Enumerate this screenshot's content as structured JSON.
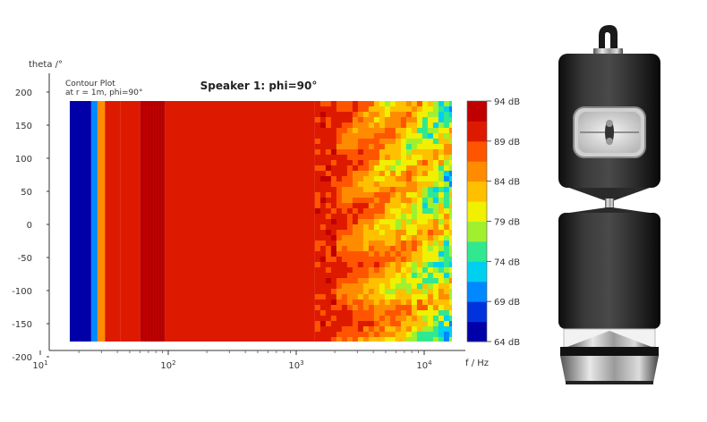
{
  "chart_data": {
    "type": "heatmap",
    "title": "Speaker 1: phi=90°",
    "subtitle_lines": [
      "Contour Plot",
      "at r = 1m, phi=90°"
    ],
    "ylabel": "theta /°",
    "xlabel": "f / Hz",
    "x_scale": "log",
    "xlim": [
      10,
      20000
    ],
    "ylim": [
      -180,
      180
    ],
    "y_ticks": [
      "200",
      "150",
      "100",
      "50",
      "0",
      "-50",
      "-100",
      "-150",
      "-200"
    ],
    "x_ticks": [
      {
        "base": "10",
        "exp": "1"
      },
      {
        "base": "10",
        "exp": "2"
      },
      {
        "base": "10",
        "exp": "3"
      },
      {
        "base": "10",
        "exp": "4"
      }
    ],
    "colorbar_labels": [
      "94 dB",
      "89 dB",
      "84 dB",
      "79 dB",
      "74 dB",
      "69 dB",
      "64 dB"
    ],
    "level_range_db": [
      64,
      94
    ],
    "colors": [
      "#0000a8",
      "#0033dd",
      "#0088ff",
      "#00d0f0",
      "#30e890",
      "#a0f030",
      "#f0f000",
      "#ffc000",
      "#ff8c00",
      "#ff5500",
      "#dd1a00",
      "#c00000"
    ],
    "bands": [
      {
        "f_start": 17,
        "f_end": 25,
        "level_db": 64
      },
      {
        "f_start": 25,
        "f_end": 28,
        "level_db": 70
      },
      {
        "f_start": 28,
        "f_end": 32,
        "level_db": 84
      },
      {
        "f_start": 32,
        "f_end": 42,
        "level_db": 90
      },
      {
        "f_start": 42,
        "f_end": 60,
        "level_db": 91
      },
      {
        "f_start": 60,
        "f_end": 95,
        "level_db": 93
      },
      {
        "f_start": 95,
        "f_end": 1400,
        "level_db": 91
      }
    ],
    "high_freq_region": {
      "f_start": 1400,
      "f_end": 20000,
      "level_range_db": [
        76,
        92
      ]
    }
  },
  "image": {
    "name": "speaker-tower-photo"
  }
}
